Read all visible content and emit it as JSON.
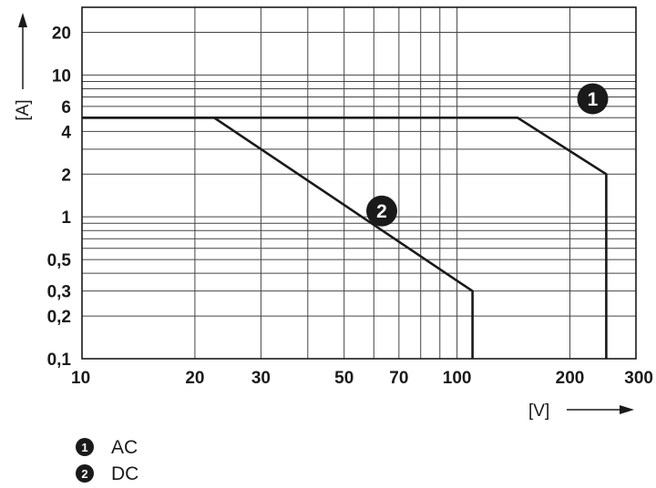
{
  "chart_data": {
    "type": "line",
    "x_scale": "log",
    "y_scale": "log",
    "xlim": [
      10,
      300
    ],
    "ylim": [
      0.1,
      30
    ],
    "grid": true,
    "xlabel": "[V]",
    "ylabel": "[A]",
    "x_ticks": [
      10,
      20,
      30,
      50,
      70,
      100,
      200,
      300
    ],
    "x_tick_labels": [
      "10",
      "20",
      "30",
      "50",
      "70",
      "100",
      "200",
      "300"
    ],
    "x_grid": [
      10,
      20,
      30,
      40,
      50,
      60,
      70,
      80,
      90,
      100,
      200,
      300
    ],
    "y_ticks": [
      0.1,
      0.2,
      0.3,
      0.5,
      1,
      2,
      4,
      6,
      10,
      20
    ],
    "y_tick_labels": [
      "0,1",
      "0,2",
      "0,3",
      "0,5",
      "1",
      "2",
      "4",
      "6",
      "10",
      "20"
    ],
    "y_grid": [
      0.1,
      0.2,
      0.3,
      0.4,
      0.5,
      0.6,
      0.7,
      0.8,
      0.9,
      1,
      2,
      3,
      4,
      5,
      6,
      7,
      8,
      9,
      10,
      20,
      30
    ],
    "series": [
      {
        "marker": "1",
        "name": "AC",
        "color": "#1a1a1a",
        "points": [
          [
            10,
            5
          ],
          [
            145,
            5
          ],
          [
            250,
            2
          ],
          [
            250,
            0.1
          ]
        ],
        "marker_at": [
          230,
          6.8
        ]
      },
      {
        "marker": "2",
        "name": "DC",
        "color": "#1a1a1a",
        "points": [
          [
            10,
            5
          ],
          [
            22.5,
            5
          ],
          [
            110,
            0.3
          ],
          [
            110,
            0.1
          ]
        ],
        "marker_at": [
          63,
          1.1
        ]
      }
    ],
    "legend": [
      {
        "marker": "1",
        "label": "AC"
      },
      {
        "marker": "2",
        "label": "DC"
      }
    ],
    "legend_position": "bottom-left"
  }
}
